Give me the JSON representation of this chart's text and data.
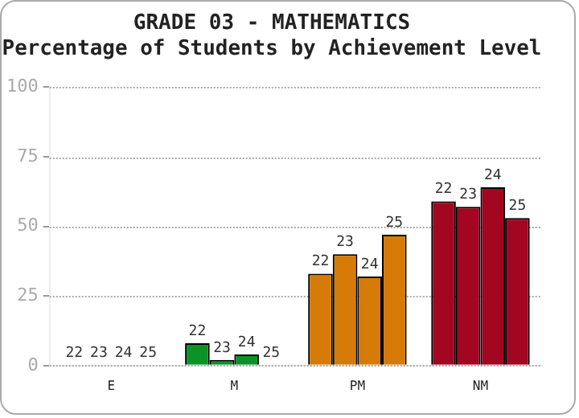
{
  "chart_data": {
    "type": "bar",
    "title": "GRADE 03 - MATHEMATICS",
    "subtitle": "Percentage of Students by Achievement Level",
    "categories": [
      "E",
      "M",
      "PM",
      "NM"
    ],
    "series": [
      {
        "name": "22",
        "colors": [
          "#0a9428",
          "#0a9428",
          "#d67b08",
          "#a30621"
        ],
        "values": [
          0,
          8,
          33,
          59
        ]
      },
      {
        "name": "23",
        "colors": [
          "#0a9428",
          "#0a9428",
          "#d67b08",
          "#a30621"
        ],
        "values": [
          0,
          2,
          40,
          57
        ]
      },
      {
        "name": "24",
        "colors": [
          "#0a9428",
          "#0a9428",
          "#d67b08",
          "#a30621"
        ],
        "values": [
          0,
          4,
          32,
          64
        ]
      },
      {
        "name": "25",
        "colors": [
          "#0a9428",
          "#0a9428",
          "#d67b08",
          "#a30621"
        ],
        "values": [
          0,
          0,
          47,
          53
        ]
      }
    ],
    "ylim": [
      0,
      100
    ],
    "yticks": [
      0,
      25,
      50,
      75,
      100
    ],
    "grid": "y",
    "legend": false
  }
}
